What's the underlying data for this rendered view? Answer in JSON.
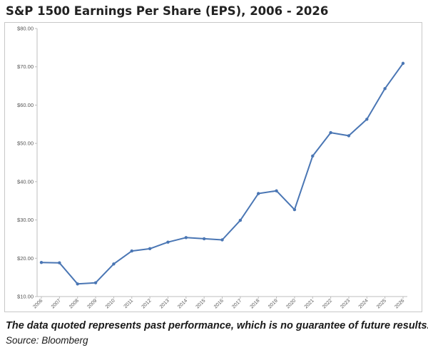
{
  "page": {
    "title": "S&P 1500 Earnings Per Share (EPS), 2006 - 2026",
    "note": "The data quoted represents past performance, which is no guarantee of future results.",
    "source": "Source: Bloomberg"
  },
  "chart_data": {
    "type": "line",
    "title": "S&P 1500 Earnings Per Share (EPS), 2006 - 2026",
    "xlabel": "",
    "ylabel": "",
    "ylim": [
      10,
      80
    ],
    "yticks": [
      10,
      20,
      30,
      40,
      50,
      60,
      70,
      80
    ],
    "ytick_labels": [
      "$10.00",
      "$20.00",
      "$30.00",
      "$40.00",
      "$50.00",
      "$60.00",
      "$70.00",
      "$80.00"
    ],
    "grid": false,
    "legend": "none",
    "line_color": "#4a76b4",
    "categories": [
      "2006",
      "2007",
      "2008",
      "2009",
      "2010",
      "2011",
      "2012",
      "2013",
      "2014",
      "2015",
      "2016",
      "2017",
      "2018",
      "2019",
      "2020",
      "2021",
      "2022",
      "2023",
      "2024",
      "2025",
      "2026"
    ],
    "series": [
      {
        "values": [
          18.9,
          18.8,
          13.3,
          13.6,
          18.5,
          21.9,
          22.5,
          24.2,
          25.4,
          25.1,
          24.8,
          29.9,
          36.9,
          37.6,
          32.7,
          46.7,
          52.8,
          52.0,
          56.3,
          64.3,
          70.9
        ]
      }
    ]
  }
}
